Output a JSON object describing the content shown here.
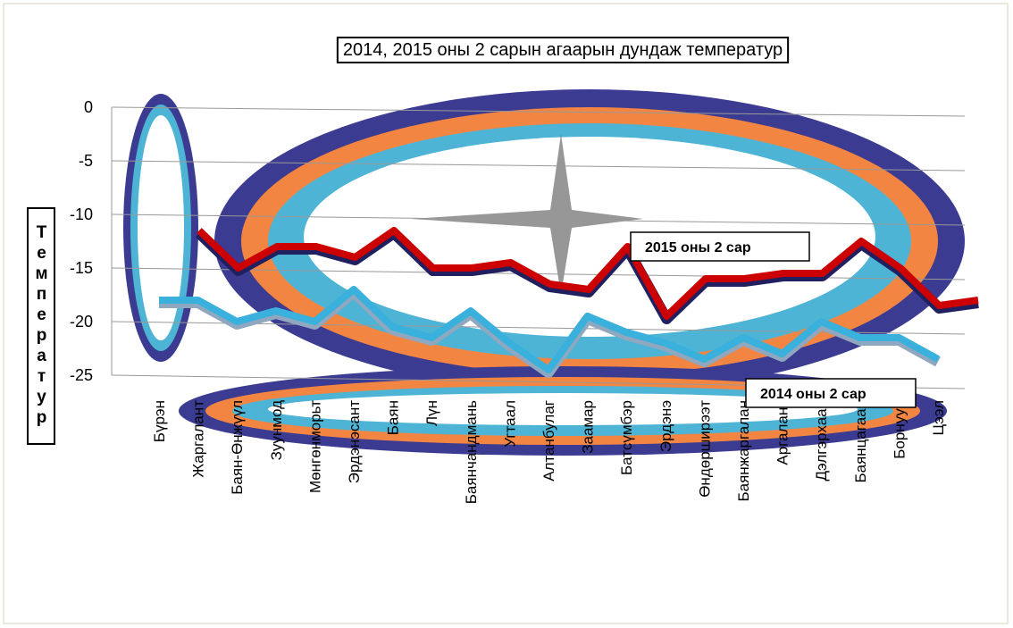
{
  "chart_data": {
    "type": "line",
    "title": "2014, 2015 оны 2 сарын агаарын дундаж температур",
    "y_label": "Температур",
    "categories": [
      "Бүрэн",
      "Жаргалант",
      "Баян-Өнжүүл",
      "Зуунмод",
      "Мөнгөнморьт",
      "Эрдэнэсант",
      "Баян",
      "Лүн",
      "Баянчандмань",
      "Угтаал",
      "Алтанбулаг",
      "Заамар",
      "Батсүмбэр",
      "Эрдэнэ",
      "Өндөрширээт",
      "Баянжаргалан",
      "Аргалант",
      "Дэлгэрхаан",
      "Баянцагаан",
      "Борнуур",
      "Цээл"
    ],
    "series": [
      {
        "name": "2015 оны 2 сар",
        "color": "#cc0000",
        "values": [
          -11.5,
          -15,
          -13,
          -13,
          -14,
          -11.5,
          -15,
          -15,
          -14.5,
          -16.5,
          -17,
          -13,
          -19.5,
          -16,
          -16,
          -15.5,
          -15.5,
          -12.5,
          -15,
          -18.5,
          -18
        ]
      },
      {
        "name": "2014 оны 2 сар",
        "color": "#3ab0dc",
        "values": [
          -18,
          -18,
          -20,
          -19,
          -20,
          -17,
          -20.5,
          -21.5,
          -19,
          -22,
          -24.5,
          -19.5,
          -21,
          -22,
          -23.5,
          -21.5,
          -23,
          -20,
          -21.5,
          -21.5,
          -23.5
        ]
      }
    ],
    "ylim": [
      -25,
      0
    ],
    "yticks": [
      0,
      -5,
      -10,
      -15,
      -20,
      -25
    ],
    "grid": true
  }
}
